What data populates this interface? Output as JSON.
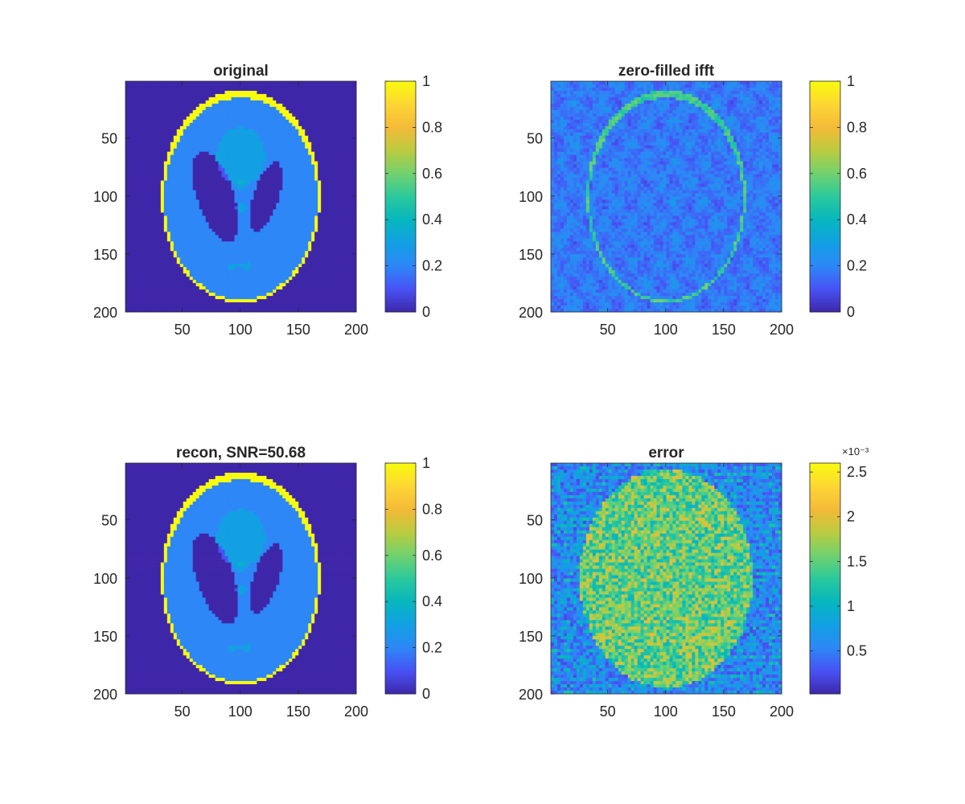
{
  "chart_data": [
    {
      "type": "heatmap",
      "title": "original",
      "content": "shepp-logan phantom",
      "xlim": [
        1,
        200
      ],
      "ylim": [
        1,
        200
      ],
      "y_reversed": true,
      "xticks": [
        50,
        100,
        150,
        200
      ],
      "yticks": [
        50,
        100,
        150,
        200
      ],
      "colormap": "parula",
      "colorbar": {
        "ticks": [
          0,
          0.2,
          0.4,
          0.6,
          0.8,
          1
        ],
        "tick_labels": [
          "0",
          "0.2",
          "0.4",
          "0.6",
          "0.8",
          "1"
        ],
        "clim": [
          0,
          1
        ],
        "exponent_label": ""
      }
    },
    {
      "type": "heatmap",
      "title": "zero-filled ifft",
      "content": "noisy aliased reconstruction",
      "xlim": [
        1,
        200
      ],
      "ylim": [
        1,
        200
      ],
      "y_reversed": true,
      "xticks": [
        50,
        100,
        150,
        200
      ],
      "yticks": [
        50,
        100,
        150,
        200
      ],
      "colormap": "parula",
      "colorbar": {
        "ticks": [
          0,
          0.2,
          0.4,
          0.6,
          0.8,
          1
        ],
        "tick_labels": [
          "0",
          "0.2",
          "0.4",
          "0.6",
          "0.8",
          "1"
        ],
        "clim": [
          0,
          1
        ],
        "exponent_label": ""
      }
    },
    {
      "type": "heatmap",
      "title": "recon, SNR=50.68",
      "content": "shepp-logan phantom",
      "xlim": [
        1,
        200
      ],
      "ylim": [
        1,
        200
      ],
      "y_reversed": true,
      "xticks": [
        50,
        100,
        150,
        200
      ],
      "yticks": [
        50,
        100,
        150,
        200
      ],
      "colormap": "parula",
      "colorbar": {
        "ticks": [
          0,
          0.2,
          0.4,
          0.6,
          0.8,
          1
        ],
        "tick_labels": [
          "0",
          "0.2",
          "0.4",
          "0.6",
          "0.8",
          "1"
        ],
        "clim": [
          0,
          1
        ],
        "exponent_label": ""
      }
    },
    {
      "type": "heatmap",
      "title": "error",
      "content": "reconstruction error with horizontal streaks",
      "xlim": [
        1,
        200
      ],
      "ylim": [
        1,
        200
      ],
      "y_reversed": true,
      "xticks": [
        50,
        100,
        150,
        200
      ],
      "yticks": [
        50,
        100,
        150,
        200
      ],
      "colormap": "parula",
      "colorbar": {
        "ticks": [
          0.5,
          1,
          1.5,
          2,
          2.5
        ],
        "tick_labels": [
          "0.5",
          "1",
          "1.5",
          "2",
          "2.5"
        ],
        "clim": [
          0.02,
          2.6
        ],
        "exponent_label": "×10⁻³"
      }
    }
  ]
}
